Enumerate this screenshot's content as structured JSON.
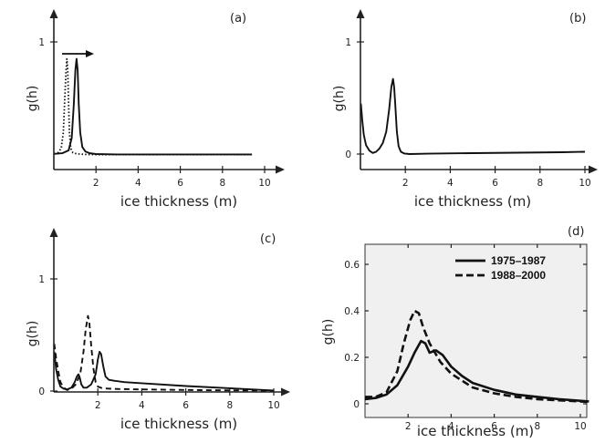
{
  "chart_data": [
    {
      "panel": "(a)",
      "type": "line",
      "xlabel": "ice thickness (m)",
      "ylabel": "g(h)",
      "x_ticks": [
        2,
        4,
        6,
        8,
        10
      ],
      "y_ticks": [
        1
      ],
      "xlim": [
        0,
        10.5
      ],
      "ylim": [
        0,
        1.2
      ],
      "annotations": [
        "rightward arrow"
      ],
      "series": [
        {
          "style": "dotted",
          "x": [
            0.02,
            0.2,
            0.35,
            0.45,
            0.52,
            0.58,
            0.62,
            0.66,
            0.7,
            0.74,
            0.8,
            0.9,
            1.1,
            1.5,
            2,
            4,
            6,
            8,
            9.4
          ],
          "y": [
            0.01,
            0.02,
            0.06,
            0.2,
            0.5,
            0.75,
            0.85,
            0.75,
            0.45,
            0.2,
            0.06,
            0.02,
            0.01,
            0.005,
            0.003,
            0.003,
            0.003,
            0.003,
            0.003
          ]
        },
        {
          "style": "solid",
          "x": [
            0.02,
            0.4,
            0.7,
            0.85,
            0.95,
            1.02,
            1.08,
            1.13,
            1.18,
            1.25,
            1.35,
            1.5,
            1.7,
            2,
            3,
            4,
            6,
            8,
            9.4
          ],
          "y": [
            0.01,
            0.015,
            0.04,
            0.15,
            0.45,
            0.75,
            0.85,
            0.75,
            0.45,
            0.2,
            0.07,
            0.03,
            0.015,
            0.008,
            0.005,
            0.005,
            0.005,
            0.005,
            0.005
          ]
        }
      ]
    },
    {
      "panel": "(b)",
      "type": "line",
      "xlabel": "ice thickness (m)",
      "ylabel": "g(h)",
      "x_ticks": [
        2,
        4,
        6,
        8,
        10
      ],
      "y_ticks": [
        0,
        1
      ],
      "xlim": [
        0,
        10.5
      ],
      "ylim": [
        0,
        1.2
      ],
      "series": [
        {
          "style": "solid",
          "x": [
            0.02,
            0.08,
            0.15,
            0.25,
            0.4,
            0.55,
            0.7,
            0.85,
            1.0,
            1.15,
            1.28,
            1.38,
            1.45,
            1.5,
            1.55,
            1.62,
            1.7,
            1.8,
            1.95,
            2.2,
            3,
            5,
            7,
            9,
            10
          ],
          "y": [
            0.45,
            0.3,
            0.17,
            0.08,
            0.03,
            0.01,
            0.02,
            0.05,
            0.1,
            0.2,
            0.4,
            0.6,
            0.67,
            0.6,
            0.45,
            0.2,
            0.07,
            0.02,
            0.005,
            0.0,
            0.003,
            0.008,
            0.012,
            0.016,
            0.02
          ]
        }
      ]
    },
    {
      "panel": "(c)",
      "type": "line",
      "xlabel": "ice thickness (m)",
      "ylabel": "g(h)",
      "x_ticks": [
        2,
        4,
        6,
        8,
        10
      ],
      "y_ticks": [
        0,
        1
      ],
      "xlim": [
        0,
        10.5
      ],
      "ylim": [
        0,
        1.2
      ],
      "series": [
        {
          "style": "dashed",
          "x": [
            0.02,
            0.1,
            0.2,
            0.3,
            0.45,
            0.6,
            0.8,
            1.0,
            1.2,
            1.35,
            1.45,
            1.55,
            1.62,
            1.7,
            1.8,
            1.9,
            2.0,
            2.2,
            2.6,
            3,
            4,
            6,
            8,
            10
          ],
          "y": [
            0.42,
            0.3,
            0.18,
            0.08,
            0.03,
            0.01,
            0.02,
            0.06,
            0.15,
            0.35,
            0.55,
            0.67,
            0.6,
            0.4,
            0.2,
            0.08,
            0.04,
            0.025,
            0.02,
            0.018,
            0.015,
            0.01,
            0.006,
            0.003
          ]
        },
        {
          "style": "solid",
          "x": [
            0.02,
            0.1,
            0.2,
            0.3,
            0.45,
            0.6,
            0.8,
            0.95,
            1.05,
            1.12,
            1.18,
            1.25,
            1.35,
            1.5,
            1.7,
            1.9,
            2.0,
            2.08,
            2.15,
            2.25,
            2.35,
            2.5,
            2.8,
            3.2,
            4,
            6,
            8,
            10
          ],
          "y": [
            0.35,
            0.2,
            0.1,
            0.04,
            0.02,
            0.015,
            0.03,
            0.08,
            0.13,
            0.15,
            0.12,
            0.06,
            0.03,
            0.03,
            0.06,
            0.15,
            0.28,
            0.35,
            0.33,
            0.22,
            0.13,
            0.1,
            0.09,
            0.08,
            0.07,
            0.045,
            0.025,
            0.005
          ]
        }
      ]
    },
    {
      "panel": "(d)",
      "type": "line",
      "ylabel": "g(h)",
      "x_ticks": [
        2,
        4,
        6,
        8,
        10
      ],
      "y_ticks": [
        0,
        0.2,
        0.4,
        0.6
      ],
      "xlim": [
        0,
        10.4
      ],
      "ylim": [
        0,
        0.7
      ],
      "legend": "top-right",
      "series": [
        {
          "name": "1975–1987",
          "style": "solid",
          "x": [
            0,
            0.5,
            1,
            1.5,
            2,
            2.3,
            2.6,
            2.8,
            3.0,
            3.3,
            3.6,
            4,
            4.5,
            5,
            6,
            7,
            8,
            9,
            10,
            10.4
          ],
          "y": [
            0.02,
            0.025,
            0.04,
            0.08,
            0.16,
            0.22,
            0.27,
            0.26,
            0.22,
            0.23,
            0.21,
            0.16,
            0.12,
            0.09,
            0.06,
            0.04,
            0.03,
            0.02,
            0.013,
            0.01
          ]
        },
        {
          "name": "1988–2000",
          "style": "dashed",
          "x": [
            0,
            0.5,
            1,
            1.5,
            1.8,
            2.1,
            2.3,
            2.5,
            2.7,
            3,
            3.5,
            4,
            4.5,
            5,
            6,
            7,
            8,
            9,
            10,
            10.4
          ],
          "y": [
            0.03,
            0.03,
            0.05,
            0.14,
            0.26,
            0.36,
            0.4,
            0.39,
            0.33,
            0.26,
            0.18,
            0.13,
            0.1,
            0.07,
            0.045,
            0.03,
            0.02,
            0.015,
            0.01,
            0.008
          ]
        }
      ]
    }
  ]
}
